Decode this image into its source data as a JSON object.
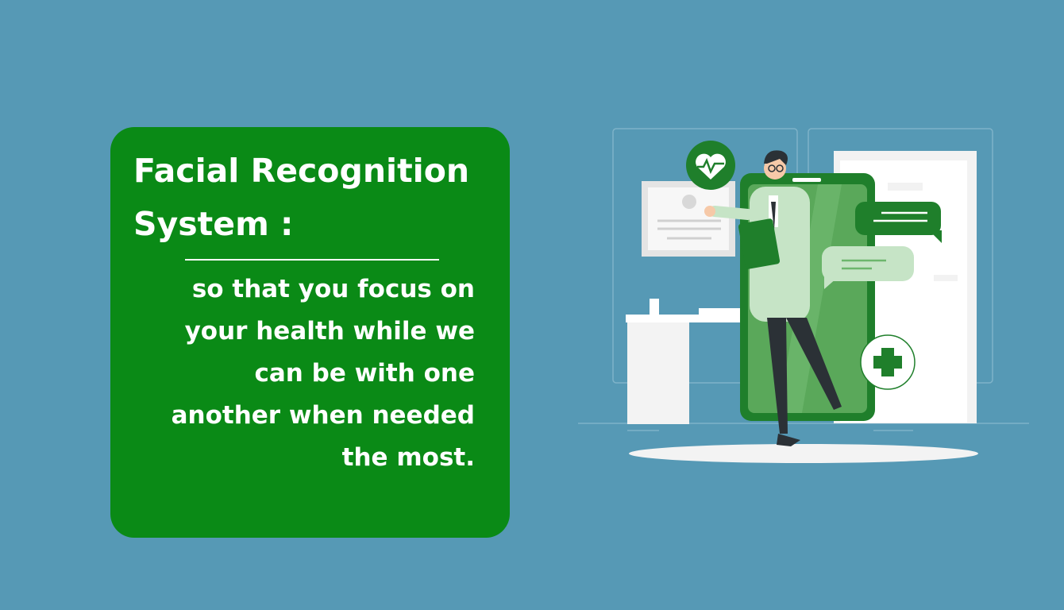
{
  "card": {
    "title_lines": [
      "Facial Recognition",
      "System :"
    ],
    "body_lines": [
      "so that you focus on",
      "your health while we",
      "can be with one",
      "another when needed",
      "the most."
    ]
  },
  "colors": {
    "background": "#5699b5",
    "card": "#0a8a16",
    "phone": "#2a9a3a",
    "accent": "#1f7f2b"
  },
  "illustration": {
    "icons": [
      "heartbeat-icon",
      "chat-bubble-icon",
      "plus-cross-icon"
    ]
  }
}
